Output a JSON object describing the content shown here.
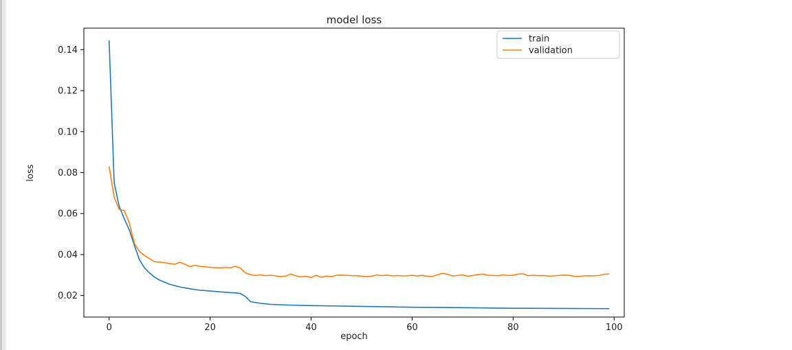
{
  "chart_data": {
    "type": "line",
    "title": "model loss",
    "xlabel": "epoch",
    "ylabel": "loss",
    "xlim": [
      -5,
      102
    ],
    "ylim": [
      0.0095,
      0.1505
    ],
    "xticks": [
      0,
      20,
      40,
      60,
      80,
      100
    ],
    "xtick_labels": [
      "0",
      "20",
      "40",
      "60",
      "80",
      "100"
    ],
    "yticks": [
      0.02,
      0.04,
      0.06,
      0.08,
      0.1,
      0.12,
      0.14
    ],
    "ytick_labels": [
      "0.02",
      "0.04",
      "0.06",
      "0.08",
      "0.10",
      "0.12",
      "0.14"
    ],
    "grid": false,
    "legend": "top-right",
    "series": [
      {
        "name": "train",
        "color": "#1f77b4",
        "x": [
          0,
          1,
          2,
          3,
          4,
          5,
          6,
          7,
          8,
          9,
          10,
          12,
          14,
          16,
          18,
          20,
          22,
          24,
          25,
          26,
          27,
          28,
          30,
          32,
          35,
          40,
          45,
          50,
          60,
          70,
          80,
          90,
          99
        ],
        "values": [
          0.1445,
          0.075,
          0.0635,
          0.0575,
          0.052,
          0.0445,
          0.0375,
          0.0335,
          0.031,
          0.029,
          0.0275,
          0.0255,
          0.0242,
          0.0233,
          0.0226,
          0.0222,
          0.0218,
          0.0214,
          0.0213,
          0.021,
          0.0195,
          0.017,
          0.0162,
          0.0157,
          0.0154,
          0.0151,
          0.0149,
          0.0147,
          0.0143,
          0.0141,
          0.0138,
          0.0137,
          0.0136
        ]
      },
      {
        "name": "validation",
        "color": "#ff7f0e",
        "x": [
          0,
          1,
          2,
          3,
          4,
          5,
          6,
          7,
          8,
          9,
          10,
          11,
          12,
          13,
          14,
          15,
          16,
          17,
          18,
          19,
          20,
          21,
          22,
          23,
          24,
          25,
          26,
          27,
          28,
          29,
          30,
          31,
          32,
          33,
          34,
          35,
          36,
          37,
          38,
          39,
          40,
          41,
          42,
          43,
          44,
          45,
          46,
          47,
          48,
          49,
          50,
          51,
          52,
          53,
          54,
          55,
          56,
          57,
          58,
          59,
          60,
          61,
          62,
          63,
          64,
          65,
          66,
          67,
          68,
          69,
          70,
          71,
          72,
          73,
          74,
          75,
          76,
          77,
          78,
          79,
          80,
          81,
          82,
          83,
          84,
          85,
          86,
          87,
          88,
          89,
          90,
          91,
          92,
          93,
          94,
          95,
          96,
          97,
          98,
          99
        ],
        "values": [
          0.083,
          0.068,
          0.062,
          0.0615,
          0.0555,
          0.0455,
          0.0415,
          0.0395,
          0.038,
          0.0365,
          0.0363,
          0.036,
          0.0356,
          0.0353,
          0.0362,
          0.0353,
          0.0341,
          0.0348,
          0.0342,
          0.034,
          0.0338,
          0.0336,
          0.0335,
          0.0337,
          0.0335,
          0.0343,
          0.0333,
          0.031,
          0.0302,
          0.0298,
          0.0301,
          0.0297,
          0.0299,
          0.0296,
          0.0292,
          0.0295,
          0.0305,
          0.0296,
          0.0291,
          0.0294,
          0.0288,
          0.0299,
          0.0289,
          0.0295,
          0.0292,
          0.0299,
          0.03,
          0.0299,
          0.0297,
          0.0297,
          0.0295,
          0.0292,
          0.0294,
          0.0301,
          0.0297,
          0.03,
          0.0296,
          0.0298,
          0.0296,
          0.0296,
          0.0299,
          0.0295,
          0.0299,
          0.0294,
          0.0293,
          0.0301,
          0.0308,
          0.0304,
          0.0296,
          0.0298,
          0.0301,
          0.0294,
          0.0298,
          0.0302,
          0.0305,
          0.0299,
          0.0298,
          0.0297,
          0.0301,
          0.0298,
          0.0299,
          0.0305,
          0.0306,
          0.0297,
          0.0299,
          0.0297,
          0.0298,
          0.0295,
          0.0296,
          0.0298,
          0.03,
          0.0299,
          0.0294,
          0.0293,
          0.0296,
          0.0297,
          0.0296,
          0.0298,
          0.0304,
          0.0305
        ]
      }
    ]
  }
}
